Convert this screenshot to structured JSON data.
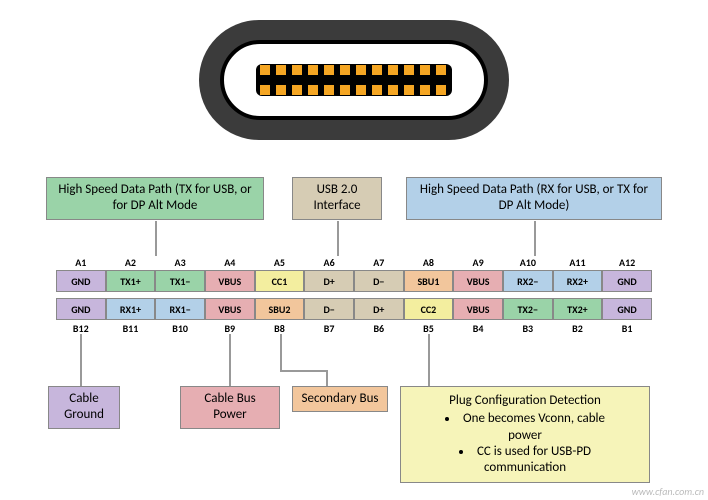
{
  "connector": {
    "outer_fill": "#3b3b3b",
    "slot_stroke": "#000000",
    "pin_fill": "#f5a623",
    "pin_count": 12
  },
  "colors": {
    "hs_tx": "#9ad3a8",
    "usb2": "#d6ccb4",
    "hs_rx": "#b3d0e8",
    "gnd": "#c7b6dc",
    "vbus": "#e6aeb2",
    "cc": "#f3ee9f",
    "sbu": "#f2c69c",
    "border": "#888888",
    "pcd_box": "#f6f4b9"
  },
  "top_labels": {
    "hs_tx": "High Speed Data Path (TX for USB, or for DP Alt Mode",
    "usb2": "USB 2.0 Interface",
    "hs_rx": "High Speed Data Path (RX for USB, or TX for DP Alt Mode)"
  },
  "rowA_headers": [
    "A1",
    "A2",
    "A3",
    "A4",
    "A5",
    "A6",
    "A7",
    "A8",
    "A9",
    "A10",
    "A11",
    "A12"
  ],
  "rowA": [
    {
      "t": "GND",
      "c": "gnd"
    },
    {
      "t": "TX1+",
      "c": "hs_tx"
    },
    {
      "t": "TX1−",
      "c": "hs_tx"
    },
    {
      "t": "VBUS",
      "c": "vbus",
      "sc": true
    },
    {
      "t": "CC1",
      "c": "cc"
    },
    {
      "t": "D+",
      "c": "usb2"
    },
    {
      "t": "D−",
      "c": "usb2"
    },
    {
      "t": "SBU1",
      "c": "sbu"
    },
    {
      "t": "VBUS",
      "c": "vbus",
      "sc": true
    },
    {
      "t": "RX2−",
      "c": "hs_rx"
    },
    {
      "t": "RX2+",
      "c": "hs_rx"
    },
    {
      "t": "GND",
      "c": "gnd"
    }
  ],
  "rowB_headers": [
    "B12",
    "B11",
    "B10",
    "B9",
    "B8",
    "B7",
    "B6",
    "B5",
    "B4",
    "B3",
    "B2",
    "B1"
  ],
  "rowB": [
    {
      "t": "GND",
      "c": "gnd"
    },
    {
      "t": "RX1+",
      "c": "hs_rx"
    },
    {
      "t": "RX1−",
      "c": "hs_rx"
    },
    {
      "t": "VBUS",
      "c": "vbus",
      "sc": true
    },
    {
      "t": "SBU2",
      "c": "sbu"
    },
    {
      "t": "D−",
      "c": "usb2"
    },
    {
      "t": "D+",
      "c": "usb2"
    },
    {
      "t": "CC2",
      "c": "cc"
    },
    {
      "t": "VBUS",
      "c": "vbus",
      "sc": true
    },
    {
      "t": "TX2−",
      "c": "hs_tx"
    },
    {
      "t": "TX2+",
      "c": "hs_tx"
    },
    {
      "t": "GND",
      "c": "gnd"
    }
  ],
  "bot_labels": {
    "gnd": "Cable Ground",
    "vbus": "Cable Bus Power",
    "sbu": "Secondary Bus",
    "pcd_title": "Plug Configuration Detection",
    "pcd_b1": "One becomes Vconn, cable power",
    "pcd_b2": "CC is used for USB-PD communication"
  },
  "watermark": "www.cfan.com.cn"
}
